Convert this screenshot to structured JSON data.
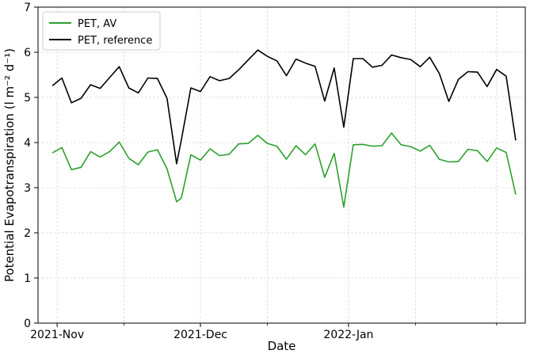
{
  "chart_data": {
    "type": "line",
    "title": "",
    "xlabel": "Date",
    "ylabel": "Potential Evapotranspiration (l m⁻² d⁻¹)",
    "ylim": [
      0,
      7
    ],
    "xlim": [
      "2021-10-28",
      "2022-02-07"
    ],
    "yticks": [
      0,
      1,
      2,
      3,
      4,
      5,
      6,
      7
    ],
    "xticks": [
      {
        "date": "2021-11-01",
        "label": "2021-Nov"
      },
      {
        "date": "2021-12-01",
        "label": "2021-Dec"
      },
      {
        "date": "2022-01-01",
        "label": "2022-Jan"
      }
    ],
    "minor_xticks": [
      "2021-11-15",
      "2021-12-15",
      "2022-01-15",
      "2022-02-01"
    ],
    "grid": true,
    "legend_position": "top-left",
    "x": [
      "2021-10-31",
      "2021-11-02",
      "2021-11-04",
      "2021-11-06",
      "2021-11-08",
      "2021-11-10",
      "2021-11-12",
      "2021-11-14",
      "2021-11-16",
      "2021-11-18",
      "2021-11-20",
      "2021-11-22",
      "2021-11-24",
      "2021-11-26",
      "2021-11-27",
      "2021-11-29",
      "2021-12-01",
      "2021-12-03",
      "2021-12-05",
      "2021-12-07",
      "2021-12-09",
      "2021-12-11",
      "2021-12-13",
      "2021-12-15",
      "2021-12-17",
      "2021-12-19",
      "2021-12-21",
      "2021-12-23",
      "2021-12-25",
      "2021-12-27",
      "2021-12-29",
      "2021-12-31",
      "2022-01-02",
      "2022-01-04",
      "2022-01-06",
      "2022-01-08",
      "2022-01-10",
      "2022-01-12",
      "2022-01-14",
      "2022-01-16",
      "2022-01-18",
      "2022-01-20",
      "2022-01-22",
      "2022-01-24",
      "2022-01-26",
      "2022-01-28",
      "2022-01-30",
      "2022-02-01",
      "2022-02-03",
      "2022-02-05"
    ],
    "series": [
      {
        "name": "PET, AV",
        "color": "#2ca02c",
        "values": [
          3.77,
          3.89,
          3.4,
          3.45,
          3.8,
          3.68,
          3.8,
          4.01,
          3.65,
          3.51,
          3.79,
          3.84,
          3.42,
          2.69,
          2.77,
          3.73,
          3.61,
          3.86,
          3.71,
          3.74,
          3.97,
          3.98,
          4.16,
          3.98,
          3.92,
          3.63,
          3.93,
          3.73,
          3.97,
          3.23,
          3.76,
          2.57,
          3.95,
          3.96,
          3.92,
          3.93,
          4.21,
          3.95,
          3.91,
          3.81,
          3.94,
          3.63,
          3.57,
          3.58,
          3.85,
          3.82,
          3.58,
          3.88,
          3.78,
          2.85
        ]
      },
      {
        "name": "PET, reference",
        "color": "#000000",
        "values": [
          5.26,
          5.43,
          4.88,
          4.98,
          5.28,
          5.2,
          5.44,
          5.68,
          5.21,
          5.1,
          5.43,
          5.42,
          4.98,
          3.53,
          4.06,
          5.21,
          5.13,
          5.46,
          5.37,
          5.42,
          5.61,
          5.83,
          6.05,
          5.91,
          5.81,
          5.48,
          5.85,
          5.76,
          5.69,
          4.92,
          5.65,
          4.34,
          5.86,
          5.86,
          5.67,
          5.71,
          5.94,
          5.88,
          5.84,
          5.68,
          5.89,
          5.53,
          4.91,
          5.4,
          5.57,
          5.56,
          5.24,
          5.62,
          5.47,
          4.05
        ]
      }
    ]
  }
}
